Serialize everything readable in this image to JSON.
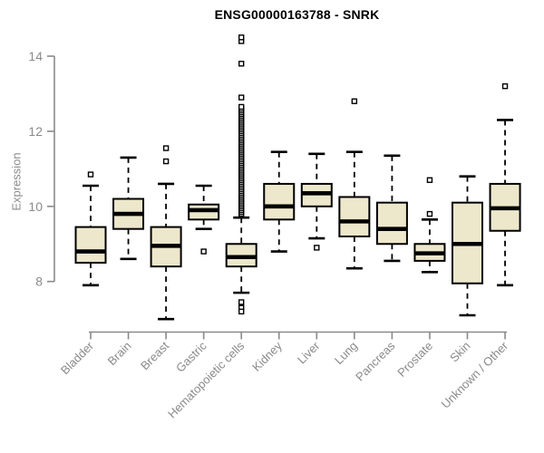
{
  "page": {
    "background": "#ffffff"
  },
  "chart_data": {
    "type": "boxplot",
    "title": "ENSG00000163788 - SNRK",
    "xlabel": "",
    "ylabel": "Expression",
    "ylim": [
      6.9,
      14.7
    ],
    "y_ticks": [
      "8",
      "10",
      "12",
      "14"
    ],
    "y_tick_values": [
      8,
      10,
      12,
      14
    ],
    "grid": false,
    "legend": false,
    "colors": {
      "box_fill": "#EDE7CC",
      "box_border": "#000000",
      "median": "#000000",
      "whisker": "#000000",
      "outlier": "#000000",
      "axis": "#8a8a8a",
      "tick_label": "#8a8a8a",
      "title": "#000000"
    },
    "categories": [
      "Bladder",
      "Brain",
      "Breast",
      "Gastric",
      "Hematopoietic cells",
      "Kidney",
      "Liver",
      "Lung",
      "Pancreas",
      "Prostate",
      "Skin",
      "Unknown / Other"
    ],
    "boxes": [
      {
        "category": "Bladder",
        "whisker_low": 7.9,
        "q1": 8.5,
        "median": 8.8,
        "q3": 9.45,
        "whisker_high": 10.55,
        "outliers": [
          10.85
        ]
      },
      {
        "category": "Brain",
        "whisker_low": 8.6,
        "q1": 9.4,
        "median": 9.8,
        "q3": 10.2,
        "whisker_high": 11.3,
        "outliers": []
      },
      {
        "category": "Breast",
        "whisker_low": 7.0,
        "q1": 8.4,
        "median": 8.95,
        "q3": 9.45,
        "whisker_high": 10.6,
        "outliers": [
          11.55,
          11.2
        ]
      },
      {
        "category": "Gastric",
        "whisker_low": 9.4,
        "q1": 9.65,
        "median": 9.9,
        "q3": 10.05,
        "whisker_high": 10.55,
        "outliers": [
          8.8
        ]
      },
      {
        "category": "Hematopoietic cells",
        "whisker_low": 7.7,
        "q1": 8.4,
        "median": 8.65,
        "q3": 9.0,
        "whisker_high": 9.7,
        "outliers": [
          9.8,
          9.85,
          9.9,
          9.95,
          10.0,
          10.05,
          10.1,
          10.15,
          10.2,
          10.25,
          10.3,
          10.35,
          10.4,
          10.45,
          10.5,
          10.55,
          10.6,
          10.65,
          10.7,
          10.75,
          10.8,
          10.85,
          10.9,
          10.95,
          11.0,
          11.05,
          11.1,
          11.15,
          11.2,
          11.25,
          11.3,
          11.35,
          11.4,
          11.45,
          11.5,
          11.55,
          11.6,
          11.65,
          11.7,
          11.75,
          11.8,
          11.85,
          11.9,
          11.95,
          12.0,
          12.05,
          12.1,
          12.15,
          12.2,
          12.25,
          12.3,
          12.35,
          12.4,
          12.45,
          12.5,
          12.55,
          12.6,
          12.65,
          12.9,
          13.8,
          14.4,
          14.5,
          7.45,
          7.3,
          7.2
        ]
      },
      {
        "category": "Kidney",
        "whisker_low": 8.8,
        "q1": 9.65,
        "median": 10.0,
        "q3": 10.6,
        "whisker_high": 11.45,
        "outliers": []
      },
      {
        "category": "Liver",
        "whisker_low": 9.15,
        "q1": 10.0,
        "median": 10.35,
        "q3": 10.6,
        "whisker_high": 11.4,
        "outliers": [
          8.9
        ]
      },
      {
        "category": "Lung",
        "whisker_low": 8.35,
        "q1": 9.2,
        "median": 9.6,
        "q3": 10.25,
        "whisker_high": 11.45,
        "outliers": [
          12.8
        ]
      },
      {
        "category": "Pancreas",
        "whisker_low": 8.55,
        "q1": 9.0,
        "median": 9.4,
        "q3": 10.1,
        "whisker_high": 11.35,
        "outliers": []
      },
      {
        "category": "Prostate",
        "whisker_low": 8.25,
        "q1": 8.55,
        "median": 8.75,
        "q3": 9.0,
        "whisker_high": 9.65,
        "outliers": [
          10.7,
          9.8
        ]
      },
      {
        "category": "Skin",
        "whisker_low": 7.1,
        "q1": 7.95,
        "median": 9.0,
        "q3": 10.1,
        "whisker_high": 10.8,
        "outliers": []
      },
      {
        "category": "Unknown / Other",
        "whisker_low": 7.9,
        "q1": 9.35,
        "median": 9.95,
        "q3": 10.6,
        "whisker_high": 12.3,
        "outliers": [
          13.2
        ]
      }
    ]
  }
}
